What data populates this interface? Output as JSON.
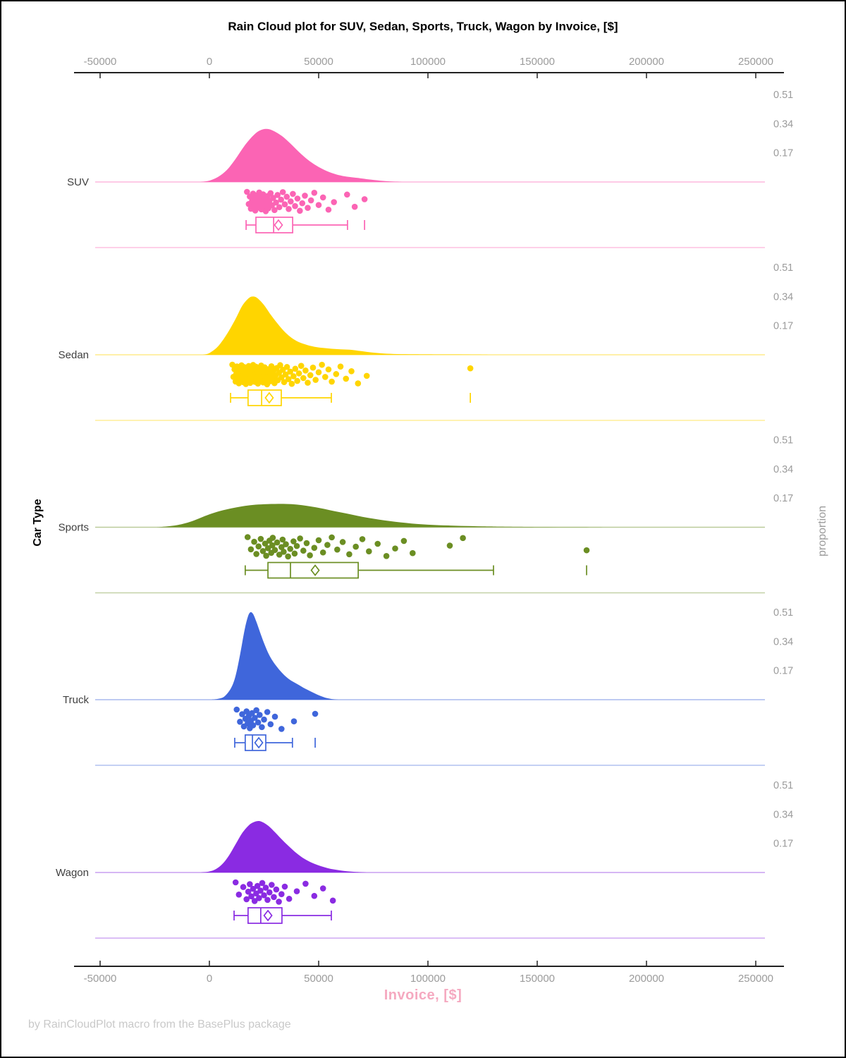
{
  "title": "Rain Cloud plot for SUV, Sedan, Sports, Truck, Wagon by Invoice, [$]",
  "footer": "by RainCloudPlot macro from the BasePlus package",
  "x_axis": {
    "label": "Invoice, [$]",
    "label_color": "#f5a9c0",
    "ticks": [
      -50000,
      0,
      50000,
      100000,
      150000,
      200000,
      250000
    ],
    "tick_label_color": "#9b9b9b"
  },
  "y_axis": {
    "label": "Car Type"
  },
  "right_axis": {
    "label": "proportion",
    "ticks": [
      0.51,
      0.34,
      0.17
    ],
    "tick_label_color": "#9b9b9b"
  },
  "chart_data": {
    "type": "raincloud (half-violin density + jittered points + box plot per category)",
    "x_field": "Invoice",
    "x_unit": "$",
    "x_range": [
      -50000,
      250000
    ],
    "proportion_ticks": [
      0.51,
      0.34,
      0.17
    ],
    "categories": [
      "SUV",
      "Sedan",
      "Sports",
      "Truck",
      "Wagon"
    ],
    "series": [
      {
        "name": "SUV",
        "color": "#fb64b4",
        "density": [
          [
            -4000,
            0
          ],
          [
            0,
            0.008
          ],
          [
            4000,
            0.03
          ],
          [
            8000,
            0.07
          ],
          [
            12000,
            0.135
          ],
          [
            16000,
            0.21
          ],
          [
            20000,
            0.27
          ],
          [
            23000,
            0.3
          ],
          [
            26000,
            0.31
          ],
          [
            29000,
            0.3
          ],
          [
            33000,
            0.27
          ],
          [
            37000,
            0.225
          ],
          [
            41000,
            0.175
          ],
          [
            45000,
            0.13
          ],
          [
            49000,
            0.095
          ],
          [
            53000,
            0.068
          ],
          [
            57000,
            0.048
          ],
          [
            61000,
            0.035
          ],
          [
            65000,
            0.028
          ],
          [
            69000,
            0.022
          ],
          [
            73000,
            0.015
          ],
          [
            78000,
            0.008
          ],
          [
            83000,
            0.003
          ],
          [
            88000,
            0
          ]
        ],
        "points": [
          17200,
          18000,
          18500,
          19000,
          19500,
          20000,
          20300,
          20800,
          21000,
          21300,
          21800,
          22000,
          22300,
          22800,
          23000,
          23400,
          23800,
          24200,
          24600,
          25000,
          25400,
          25800,
          26200,
          26600,
          27000,
          27500,
          28000,
          28600,
          29200,
          29800,
          30500,
          31200,
          32000,
          32800,
          33600,
          34500,
          35400,
          36300,
          37200,
          38200,
          39200,
          40300,
          41400,
          42500,
          43700,
          45000,
          46500,
          48000,
          50000,
          52000,
          54500,
          57000,
          63000,
          66500,
          71000
        ],
        "box": {
          "whisker_low": 16800,
          "q1": 21300,
          "median": 29400,
          "mean": 31600,
          "q3": 38100,
          "whisker_high": 63200,
          "outliers": [
            71000
          ]
        }
      },
      {
        "name": "Sedan",
        "color": "#ffd500",
        "density": [
          [
            -3000,
            0
          ],
          [
            0,
            0.01
          ],
          [
            4000,
            0.05
          ],
          [
            8000,
            0.12
          ],
          [
            12000,
            0.21
          ],
          [
            15000,
            0.285
          ],
          [
            18000,
            0.33
          ],
          [
            20000,
            0.34
          ],
          [
            22000,
            0.33
          ],
          [
            25000,
            0.29
          ],
          [
            28000,
            0.235
          ],
          [
            31000,
            0.185
          ],
          [
            34000,
            0.14
          ],
          [
            37000,
            0.105
          ],
          [
            40000,
            0.08
          ],
          [
            44000,
            0.06
          ],
          [
            48000,
            0.047
          ],
          [
            52000,
            0.04
          ],
          [
            56000,
            0.035
          ],
          [
            60000,
            0.032
          ],
          [
            64000,
            0.03
          ],
          [
            68000,
            0.024
          ],
          [
            72000,
            0.017
          ],
          [
            76000,
            0.011
          ],
          [
            80000,
            0.007
          ],
          [
            86000,
            0.004
          ],
          [
            94000,
            0.003
          ],
          [
            104000,
            0.002
          ],
          [
            114000,
            0.002
          ],
          [
            122000,
            0.001
          ],
          [
            128000,
            0
          ]
        ],
        "points": [
          10500,
          11000,
          11500,
          12000,
          12300,
          12600,
          13000,
          13200,
          13500,
          13800,
          14000,
          14200,
          14500,
          14700,
          15000,
          15200,
          15500,
          15700,
          16000,
          16200,
          16500,
          16700,
          17000,
          17200,
          17500,
          17700,
          18000,
          18200,
          18500,
          18700,
          19000,
          19200,
          19500,
          19700,
          20000,
          20200,
          20500,
          20800,
          21000,
          21300,
          21600,
          21900,
          22200,
          22500,
          22800,
          23100,
          23400,
          23700,
          24000,
          24300,
          24600,
          25000,
          25300,
          25700,
          26000,
          26400,
          26800,
          27200,
          27600,
          28000,
          28400,
          28900,
          29300,
          29800,
          30300,
          30800,
          31300,
          31900,
          32400,
          33000,
          33600,
          34200,
          34900,
          35500,
          36200,
          37000,
          37700,
          38500,
          39300,
          40200,
          41000,
          42000,
          43000,
          44000,
          45000,
          46200,
          47400,
          48600,
          50000,
          51500,
          53000,
          54500,
          56000,
          58000,
          60000,
          62500,
          65000,
          68000,
          72000,
          119400
        ],
        "box": {
          "whisker_low": 9700,
          "q1": 17700,
          "median": 23900,
          "mean": 27400,
          "q3": 32900,
          "whisker_high": 55800,
          "outliers": [
            119400
          ]
        }
      },
      {
        "name": "Sports",
        "color": "#6b8e23",
        "density": [
          [
            -24000,
            0
          ],
          [
            -20000,
            0.004
          ],
          [
            -16000,
            0.01
          ],
          [
            -12000,
            0.02
          ],
          [
            -8000,
            0.035
          ],
          [
            -4000,
            0.055
          ],
          [
            0,
            0.075
          ],
          [
            5000,
            0.095
          ],
          [
            10000,
            0.11
          ],
          [
            15000,
            0.122
          ],
          [
            20000,
            0.13
          ],
          [
            25000,
            0.134
          ],
          [
            30000,
            0.136
          ],
          [
            35000,
            0.136
          ],
          [
            40000,
            0.132
          ],
          [
            45000,
            0.124
          ],
          [
            50000,
            0.113
          ],
          [
            55000,
            0.1
          ],
          [
            60000,
            0.087
          ],
          [
            65000,
            0.074
          ],
          [
            70000,
            0.061
          ],
          [
            75000,
            0.05
          ],
          [
            80000,
            0.04
          ],
          [
            85000,
            0.032
          ],
          [
            90000,
            0.025
          ],
          [
            95000,
            0.019
          ],
          [
            100000,
            0.015
          ],
          [
            105000,
            0.012
          ],
          [
            110000,
            0.01
          ],
          [
            115000,
            0.008
          ],
          [
            120000,
            0.0065
          ],
          [
            125000,
            0.005
          ],
          [
            130000,
            0.004
          ],
          [
            137000,
            0.003
          ],
          [
            145000,
            0.002
          ],
          [
            155000,
            0.0015
          ],
          [
            165000,
            0.001
          ],
          [
            175000,
            0.0005
          ],
          [
            182000,
            0
          ]
        ],
        "points": [
          17500,
          19000,
          20500,
          21500,
          22500,
          23500,
          24500,
          25500,
          26000,
          26800,
          27500,
          28300,
          28800,
          29000,
          30000,
          31000,
          32000,
          33000,
          33500,
          34000,
          35000,
          36000,
          37000,
          38500,
          39000,
          40000,
          41500,
          43000,
          44500,
          46000,
          48000,
          50000,
          52000,
          54000,
          56000,
          58500,
          61000,
          64000,
          67000,
          70000,
          73000,
          77000,
          81000,
          85000,
          89000,
          93000,
          110000,
          116000,
          172600
        ],
        "box": {
          "whisker_low": 16400,
          "q1": 26800,
          "median": 37100,
          "mean": 48400,
          "q3": 68100,
          "whisker_high": 130000,
          "outliers": [
            172600
          ]
        }
      },
      {
        "name": "Truck",
        "color": "#3f66db",
        "density": [
          [
            1000,
            0
          ],
          [
            4000,
            0.005
          ],
          [
            7000,
            0.02
          ],
          [
            10000,
            0.07
          ],
          [
            12000,
            0.14
          ],
          [
            14000,
            0.26
          ],
          [
            16000,
            0.4
          ],
          [
            17500,
            0.48
          ],
          [
            18700,
            0.51
          ],
          [
            20000,
            0.5
          ],
          [
            21500,
            0.455
          ],
          [
            23000,
            0.4
          ],
          [
            25000,
            0.33
          ],
          [
            27000,
            0.27
          ],
          [
            29000,
            0.225
          ],
          [
            31000,
            0.19
          ],
          [
            33000,
            0.16
          ],
          [
            35000,
            0.135
          ],
          [
            37000,
            0.115
          ],
          [
            39000,
            0.1
          ],
          [
            41000,
            0.085
          ],
          [
            43000,
            0.07
          ],
          [
            45000,
            0.057
          ],
          [
            47000,
            0.044
          ],
          [
            49000,
            0.032
          ],
          [
            51000,
            0.021
          ],
          [
            53000,
            0.012
          ],
          [
            55000,
            0.006
          ],
          [
            57000,
            0.002
          ],
          [
            59000,
            0
          ]
        ],
        "points": [
          12500,
          14000,
          15000,
          15800,
          16500,
          17000,
          17500,
          18000,
          18500,
          19000,
          19500,
          20000,
          20800,
          21500,
          22300,
          23000,
          24000,
          25000,
          26500,
          28000,
          30000,
          33000,
          38700,
          48400
        ],
        "box": {
          "whisker_low": 11600,
          "q1": 16400,
          "median": 19700,
          "mean": 22600,
          "q3": 25800,
          "whisker_high": 38000,
          "outliers": [
            48400
          ]
        }
      },
      {
        "name": "Wagon",
        "color": "#8a2be2",
        "density": [
          [
            -4000,
            0
          ],
          [
            0,
            0.006
          ],
          [
            3000,
            0.02
          ],
          [
            6000,
            0.05
          ],
          [
            9000,
            0.1
          ],
          [
            12000,
            0.165
          ],
          [
            15000,
            0.23
          ],
          [
            18000,
            0.275
          ],
          [
            20000,
            0.292
          ],
          [
            22000,
            0.3
          ],
          [
            24000,
            0.296
          ],
          [
            27000,
            0.272
          ],
          [
            30000,
            0.235
          ],
          [
            33000,
            0.195
          ],
          [
            36000,
            0.157
          ],
          [
            39000,
            0.122
          ],
          [
            42000,
            0.092
          ],
          [
            45000,
            0.069
          ],
          [
            48000,
            0.051
          ],
          [
            51000,
            0.037
          ],
          [
            54000,
            0.026
          ],
          [
            57000,
            0.018
          ],
          [
            60000,
            0.012
          ],
          [
            63000,
            0.007
          ],
          [
            66000,
            0.004
          ],
          [
            69000,
            0.002
          ],
          [
            72000,
            0
          ]
        ],
        "points": [
          12000,
          13500,
          15500,
          17000,
          17800,
          18500,
          19200,
          20000,
          20700,
          21400,
          22000,
          22700,
          23400,
          24200,
          25000,
          25800,
          26600,
          27500,
          28500,
          29500,
          30600,
          31800,
          33000,
          34500,
          36500,
          40000,
          44000,
          48000,
          52000,
          56500
        ],
        "box": {
          "whisker_low": 11300,
          "q1": 17700,
          "median": 23500,
          "mean": 26800,
          "q3": 33200,
          "whisker_high": 55800,
          "outliers": []
        }
      }
    ]
  }
}
